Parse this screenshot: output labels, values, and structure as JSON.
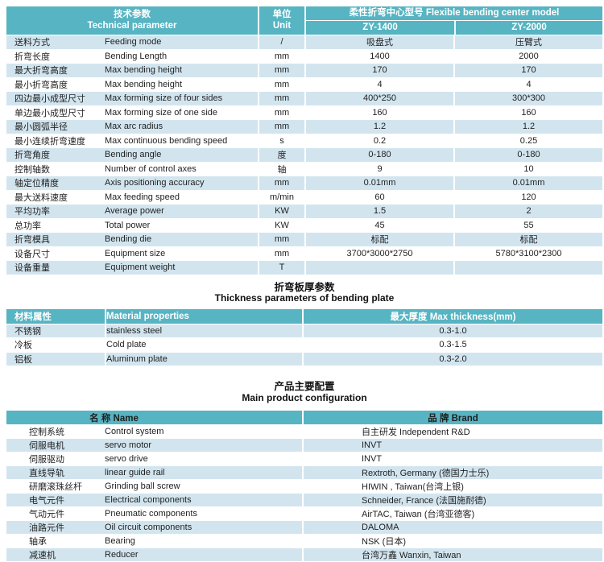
{
  "colors": {
    "header_teal": "#57b4c2",
    "row_alt_blue": "#d2e5ef",
    "text": "#1f1f1f"
  },
  "table1": {
    "header": {
      "param_cn": "技术参数",
      "param_en": "Technical parameter",
      "unit_cn": "单位",
      "unit_en": "Unit",
      "model_title": "柔性折弯中心型号  Flexible bending center model",
      "model1": "ZY-1400",
      "model2": "ZY-2000"
    },
    "rows": [
      {
        "cn": "送料方式",
        "en": "Feeding mode",
        "unit": "/",
        "v1": "吸盘式",
        "v2": "压臂式"
      },
      {
        "cn": "折弯长度",
        "en": "Bending Length",
        "unit": "mm",
        "v1": "1400",
        "v2": "2000"
      },
      {
        "cn": "最大折弯高度",
        "en": "Max bending height",
        "unit": "mm",
        "v1": "170",
        "v2": "170"
      },
      {
        "cn": "最小折弯高度",
        "en": "Max bending height",
        "unit": "mm",
        "v1": "4",
        "v2": "4"
      },
      {
        "cn": "四边最小成型尺寸",
        "en": "Max forming size of four sides",
        "unit": "mm",
        "v1": "400*250",
        "v2": "300*300"
      },
      {
        "cn": "单边最小成型尺寸",
        "en": "Max forming size of one side",
        "unit": "mm",
        "v1": "160",
        "v2": "160"
      },
      {
        "cn": "最小圆弧半径",
        "en": "Max arc radius",
        "unit": "mm",
        "v1": "1.2",
        "v2": "1.2"
      },
      {
        "cn": "最小连续折弯速度",
        "en": "Max continuous bending speed",
        "unit": "s",
        "v1": "0.2",
        "v2": "0.25"
      },
      {
        "cn": "折弯角度",
        "en": "Bending angle",
        "unit": "度",
        "v1": "0-180",
        "v2": "0-180"
      },
      {
        "cn": "控制轴数",
        "en": "Number of control axes",
        "unit": "轴",
        "v1": "9",
        "v2": "10"
      },
      {
        "cn": "轴定位精度",
        "en": "Axis positioning accuracy",
        "unit": "mm",
        "v1": "0.01mm",
        "v2": "0.01mm"
      },
      {
        "cn": "最大送料速度",
        "en": "Max feeding speed",
        "unit": "m/min",
        "v1": "60",
        "v2": "120"
      },
      {
        "cn": "平均功率",
        "en": "Average power",
        "unit": "KW",
        "v1": "1.5",
        "v2": "2"
      },
      {
        "cn": "总功率",
        "en": "Total power",
        "unit": "KW",
        "v1": "45",
        "v2": "55"
      },
      {
        "cn": "折弯模具",
        "en": "Bending die",
        "unit": "mm",
        "v1": "标配",
        "v2": "标配"
      },
      {
        "cn": "设备尺寸",
        "en": "Equipment size",
        "unit": "mm",
        "v1": "3700*3000*2750",
        "v2": "5780*3100*2300"
      },
      {
        "cn": "设备重量",
        "en": "Equipment weight",
        "unit": "T",
        "v1": "",
        "v2": ""
      }
    ]
  },
  "table2": {
    "title_cn": "折弯板厚参数",
    "title_en": "Thickness parameters of bending plate",
    "header": {
      "cn": "材料属性",
      "en": "Material properties",
      "right": "最大厚度  Max thickness(mm)"
    },
    "rows": [
      {
        "cn": "不锈钢",
        "en": "stainless steel",
        "v": "0.3-1.0"
      },
      {
        "cn": "冷板",
        "en": "Cold plate",
        "v": "0.3-1.5"
      },
      {
        "cn": "铝板",
        "en": "Aluminum plate",
        "v": "0.3-2.0"
      }
    ]
  },
  "table3": {
    "title_cn": "产品主要配置",
    "title_en": "Main product configuration",
    "header": {
      "name": "名  称 Name",
      "brand": "品  牌 Brand"
    },
    "rows": [
      {
        "cn": "控制系统",
        "en": "Control system",
        "brand": "自主研发  Independent R&D"
      },
      {
        "cn": "伺服电机",
        "en": "servo motor",
        "brand": "INVT"
      },
      {
        "cn": "伺服驱动",
        "en": "servo drive",
        "brand": "INVT"
      },
      {
        "cn": "直线导轨",
        "en": "linear guide rail",
        "brand": "Rextroth, Germany (德国力士乐)"
      },
      {
        "cn": "研磨滚珠丝杆",
        "en": "Grinding ball screw",
        "brand": "HIWIN , Taiwan(台湾上银)"
      },
      {
        "cn": "电气元件",
        "en": "Electrical components",
        "brand": "Schneider, France (法国施耐德)"
      },
      {
        "cn": "气动元件",
        "en": "Pneumatic components",
        "brand": "AirTAC, Taiwan (台湾亚德客)"
      },
      {
        "cn": "油路元件",
        "en": "Oil circuit components",
        "brand": "DALOMA"
      },
      {
        "cn": "轴承",
        "en": "Bearing",
        "brand": "NSK (日本)"
      },
      {
        "cn": "减速机",
        "en": "Reducer",
        "brand": "台湾万鑫  Wanxin, Taiwan"
      }
    ]
  }
}
